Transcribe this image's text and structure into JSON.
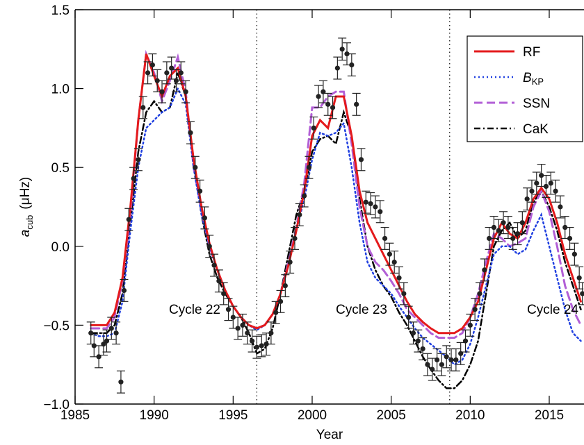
{
  "chart_data": {
    "type": "line",
    "xlabel": "Year",
    "ylabel": {
      "symbol": "a",
      "subscript": "cub",
      "unit": "(μHz)"
    },
    "xlim": [
      1985,
      2017.2
    ],
    "ylim": [
      -1.0,
      1.5
    ],
    "xticks": [
      1985,
      1990,
      1995,
      2000,
      2005,
      2010,
      2015
    ],
    "yticks": [
      {
        "value": -1.0,
        "label": "−1.0"
      },
      {
        "value": -0.5,
        "label": "−0.5"
      },
      {
        "value": 0.0,
        "label": "0.0"
      },
      0.5,
      {
        "value": 1.0,
        "label": "1.0"
      },
      1.5
    ],
    "cycle_boundaries": [
      1996.5,
      2008.7
    ],
    "annotations": [
      "Cycle 22",
      "Cycle 23",
      "Cycle 24"
    ],
    "legend": "upper right",
    "points": {
      "color": "#222222",
      "x": [
        1986.0,
        1986.2,
        1986.5,
        1986.8,
        1987.0,
        1987.3,
        1987.6,
        1987.9,
        1988.1,
        1988.4,
        1988.7,
        1989.0,
        1989.3,
        1989.6,
        1989.9,
        1990.2,
        1990.5,
        1990.8,
        1991.1,
        1991.4,
        1991.7,
        1992.0,
        1992.3,
        1992.6,
        1992.9,
        1993.2,
        1993.5,
        1993.8,
        1994.1,
        1994.4,
        1994.7,
        1995.0,
        1995.3,
        1995.6,
        1995.9,
        1996.2,
        1996.5,
        1996.8,
        1997.1,
        1997.4,
        1997.7,
        1998.0,
        1998.3,
        1998.6,
        1998.9,
        1999.2,
        1999.5,
        1999.8,
        2000.1,
        2000.4,
        2000.7,
        2001.0,
        2001.3,
        2001.6,
        2001.9,
        2002.2,
        2002.5,
        2002.8,
        2003.1,
        2003.4,
        2003.7,
        2004.0,
        2004.3,
        2004.6,
        2004.9,
        2005.2,
        2005.5,
        2005.8,
        2006.1,
        2006.4,
        2006.7,
        2007.0,
        2007.3,
        2007.6,
        2007.9,
        2008.2,
        2008.5,
        2008.8,
        2009.1,
        2009.4,
        2009.7,
        2010.0,
        2010.3,
        2010.6,
        2010.9,
        2011.2,
        2011.5,
        2011.8,
        2012.1,
        2012.4,
        2012.7,
        2013.0,
        2013.3,
        2013.6,
        2013.9,
        2014.2,
        2014.5,
        2014.8,
        2015.1,
        2015.4,
        2015.7,
        2016.0,
        2016.3,
        2016.6,
        2016.9,
        2017.1
      ],
      "values": [
        -0.55,
        -0.63,
        -0.7,
        -0.62,
        -0.6,
        -0.52,
        -0.55,
        -0.86,
        -0.28,
        0.17,
        0.43,
        0.55,
        0.88,
        1.1,
        1.15,
        1.05,
        0.98,
        1.1,
        1.13,
        1.05,
        1.1,
        0.98,
        0.72,
        0.5,
        0.35,
        0.18,
        0.0,
        -0.12,
        -0.22,
        -0.3,
        -0.4,
        -0.45,
        -0.52,
        -0.5,
        -0.55,
        -0.6,
        -0.64,
        -0.63,
        -0.62,
        -0.55,
        -0.42,
        -0.35,
        -0.25,
        -0.1,
        0.05,
        0.2,
        0.32,
        0.5,
        0.75,
        0.95,
        0.98,
        0.9,
        0.88,
        1.13,
        1.25,
        1.22,
        1.15,
        0.9,
        0.55,
        0.28,
        0.27,
        0.25,
        0.22,
        0.05,
        -0.05,
        -0.1,
        -0.2,
        -0.3,
        -0.45,
        -0.55,
        -0.6,
        -0.65,
        -0.75,
        -0.78,
        -0.72,
        -0.75,
        -0.7,
        -0.72,
        -0.72,
        -0.68,
        -0.6,
        -0.5,
        -0.4,
        -0.3,
        -0.15,
        0.05,
        0.12,
        0.1,
        0.15,
        0.12,
        0.05,
        0.08,
        0.15,
        0.3,
        0.35,
        0.4,
        0.45,
        0.38,
        0.4,
        0.35,
        0.25,
        0.12,
        0.05,
        -0.05,
        -0.2,
        -0.3
      ],
      "errors": [
        0.07,
        0.07,
        0.07,
        0.07,
        0.07,
        0.07,
        0.07,
        0.07,
        0.07,
        0.07,
        0.07,
        0.07,
        0.07,
        0.07,
        0.07,
        0.07,
        0.07,
        0.07,
        0.07,
        0.07,
        0.07,
        0.07,
        0.07,
        0.07,
        0.07,
        0.07,
        0.07,
        0.07,
        0.07,
        0.07,
        0.07,
        0.07,
        0.07,
        0.07,
        0.07,
        0.07,
        0.07,
        0.07,
        0.07,
        0.07,
        0.07,
        0.07,
        0.07,
        0.07,
        0.07,
        0.07,
        0.07,
        0.07,
        0.07,
        0.07,
        0.07,
        0.07,
        0.07,
        0.07,
        0.07,
        0.07,
        0.07,
        0.07,
        0.07,
        0.07,
        0.07,
        0.07,
        0.07,
        0.07,
        0.07,
        0.07,
        0.07,
        0.07,
        0.07,
        0.07,
        0.07,
        0.07,
        0.07,
        0.07,
        0.07,
        0.07,
        0.07,
        0.07,
        0.07,
        0.07,
        0.07,
        0.07,
        0.07,
        0.07,
        0.07,
        0.07,
        0.07,
        0.07,
        0.07,
        0.07,
        0.07,
        0.07,
        0.07,
        0.07,
        0.07,
        0.07,
        0.07,
        0.07,
        0.07,
        0.07,
        0.07,
        0.07,
        0.07,
        0.07,
        0.07,
        0.07
      ]
    },
    "x": [
      1986.0,
      1986.5,
      1987.0,
      1987.5,
      1988.0,
      1988.5,
      1989.0,
      1989.5,
      1990.0,
      1990.5,
      1991.0,
      1991.5,
      1992.0,
      1992.5,
      1993.0,
      1993.5,
      1994.0,
      1994.5,
      1995.0,
      1995.5,
      1996.0,
      1996.5,
      1997.0,
      1997.5,
      1998.0,
      1998.5,
      1999.0,
      1999.5,
      2000.0,
      2000.5,
      2001.0,
      2001.5,
      2002.0,
      2002.5,
      2003.0,
      2003.5,
      2004.0,
      2004.5,
      2005.0,
      2005.5,
      2006.0,
      2006.5,
      2007.0,
      2007.5,
      2008.0,
      2008.5,
      2009.0,
      2009.5,
      2010.0,
      2010.5,
      2011.0,
      2011.5,
      2012.0,
      2012.5,
      2013.0,
      2013.5,
      2014.0,
      2014.5,
      2015.0,
      2015.5,
      2016.0,
      2016.5,
      2017.0
    ],
    "series": [
      {
        "name": "RF",
        "color": "#e41a1c",
        "linestyle": "solid",
        "values": [
          -0.5,
          -0.5,
          -0.5,
          -0.42,
          -0.2,
          0.25,
          0.8,
          1.22,
          1.08,
          0.95,
          1.08,
          1.13,
          0.95,
          0.55,
          0.25,
          0.02,
          -0.15,
          -0.28,
          -0.38,
          -0.45,
          -0.5,
          -0.52,
          -0.5,
          -0.43,
          -0.3,
          -0.12,
          0.1,
          0.35,
          0.7,
          0.8,
          0.75,
          0.95,
          0.95,
          0.7,
          0.35,
          0.15,
          0.05,
          -0.05,
          -0.15,
          -0.25,
          -0.35,
          -0.43,
          -0.48,
          -0.52,
          -0.55,
          -0.55,
          -0.55,
          -0.52,
          -0.45,
          -0.35,
          -0.15,
          0.05,
          0.15,
          0.08,
          0.05,
          0.15,
          0.3,
          0.37,
          0.3,
          0.15,
          -0.05,
          -0.2,
          -0.35
        ]
      },
      {
        "name": "B",
        "subscript": "KP",
        "color": "#1f3fe0",
        "linestyle": "dotted",
        "values": [
          -0.55,
          -0.57,
          -0.57,
          -0.55,
          -0.35,
          0.1,
          0.5,
          0.75,
          0.8,
          0.85,
          0.88,
          1.0,
          0.9,
          0.5,
          0.2,
          0.0,
          -0.15,
          -0.28,
          -0.38,
          -0.45,
          -0.5,
          -0.53,
          -0.5,
          -0.43,
          -0.3,
          -0.12,
          0.1,
          0.3,
          0.55,
          0.72,
          0.7,
          0.72,
          0.78,
          0.5,
          0.15,
          -0.1,
          -0.2,
          -0.25,
          -0.3,
          -0.38,
          -0.45,
          -0.52,
          -0.58,
          -0.62,
          -0.66,
          -0.7,
          -0.75,
          -0.72,
          -0.62,
          -0.45,
          -0.25,
          -0.05,
          0.0,
          0.0,
          -0.05,
          -0.02,
          0.1,
          0.2,
          0.0,
          -0.2,
          -0.4,
          -0.55,
          -0.6
        ]
      },
      {
        "name": "SSN",
        "color": "#b25fd6",
        "linestyle": "dashed",
        "values": [
          -0.52,
          -0.52,
          -0.52,
          -0.45,
          -0.22,
          0.2,
          0.8,
          1.22,
          1.1,
          0.92,
          1.05,
          1.2,
          0.98,
          0.5,
          0.22,
          0.0,
          -0.15,
          -0.28,
          -0.38,
          -0.45,
          -0.5,
          -0.52,
          -0.5,
          -0.43,
          -0.3,
          -0.1,
          0.12,
          0.4,
          0.88,
          0.88,
          0.95,
          0.98,
          0.98,
          0.65,
          0.25,
          0.0,
          -0.1,
          -0.15,
          -0.22,
          -0.3,
          -0.4,
          -0.45,
          -0.5,
          -0.55,
          -0.58,
          -0.58,
          -0.58,
          -0.55,
          -0.45,
          -0.3,
          -0.1,
          0.08,
          0.05,
          0.0,
          0.02,
          0.05,
          0.25,
          0.35,
          0.22,
          0.0,
          -0.25,
          -0.4,
          -0.5
        ]
      },
      {
        "name": "CaK",
        "color": "#000000",
        "linestyle": "dashdot",
        "values": [
          -0.55,
          -0.55,
          -0.55,
          -0.5,
          -0.3,
          0.15,
          0.6,
          0.85,
          0.92,
          0.85,
          0.88,
          1.1,
          0.95,
          0.55,
          0.2,
          -0.05,
          -0.2,
          -0.3,
          -0.38,
          -0.45,
          -0.55,
          -0.68,
          -0.65,
          -0.52,
          -0.3,
          -0.05,
          0.2,
          0.35,
          0.6,
          0.68,
          0.7,
          0.65,
          0.85,
          0.7,
          0.3,
          0.0,
          -0.15,
          -0.25,
          -0.32,
          -0.42,
          -0.5,
          -0.6,
          -0.7,
          -0.78,
          -0.85,
          -0.9,
          -0.9,
          -0.85,
          -0.75,
          -0.6,
          -0.3,
          0.0,
          0.1,
          0.15,
          0.05,
          0.1,
          0.28,
          0.35,
          0.25,
          0.1,
          -0.1,
          -0.25,
          -0.4
        ]
      }
    ]
  }
}
